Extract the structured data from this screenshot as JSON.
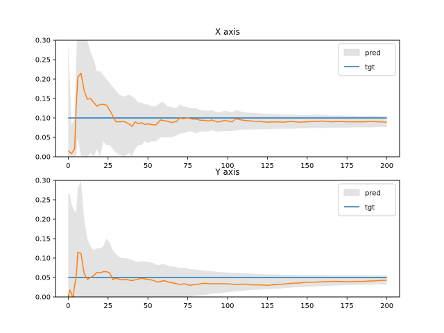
{
  "chart_data": [
    {
      "type": "line",
      "title": "X axis",
      "xlabel": "",
      "ylabel": "",
      "xlim": [
        -8,
        208
      ],
      "ylim": [
        0,
        0.3
      ],
      "xticks": [
        0,
        25,
        50,
        75,
        100,
        125,
        150,
        175,
        200
      ],
      "yticks": [
        0.0,
        0.05,
        0.1,
        0.15,
        0.2,
        0.25,
        0.3
      ],
      "ytick_labels": [
        "0.00",
        "0.05",
        "0.10",
        "0.15",
        "0.20",
        "0.25",
        "0.30"
      ],
      "grid": false,
      "legend": {
        "placement": "top-right",
        "entries": [
          "pred",
          "tgt"
        ]
      },
      "colors": {
        "pred_line": "#ff7f0e",
        "pred_band": "#e3e3e3",
        "tgt_line": "#1f77b4"
      },
      "series": [
        {
          "name": "pred",
          "kind": "line",
          "x": [
            0,
            2,
            4,
            5,
            6,
            8,
            10,
            12,
            14,
            16,
            18,
            20,
            22,
            24,
            26,
            28,
            30,
            32,
            35,
            38,
            40,
            42,
            44,
            46,
            48,
            50,
            52,
            55,
            58,
            60,
            62,
            65,
            68,
            70,
            72,
            75,
            78,
            80,
            83,
            85,
            88,
            90,
            93,
            95,
            98,
            100,
            103,
            105,
            110,
            115,
            120,
            125,
            130,
            135,
            140,
            145,
            150,
            155,
            160,
            165,
            170,
            175,
            180,
            185,
            190,
            195,
            200
          ],
          "values": [
            0.015,
            0.008,
            0.02,
            0.13,
            0.205,
            0.215,
            0.17,
            0.148,
            0.15,
            0.14,
            0.13,
            0.135,
            0.135,
            0.133,
            0.12,
            0.105,
            0.09,
            0.09,
            0.091,
            0.085,
            0.078,
            0.09,
            0.085,
            0.088,
            0.083,
            0.085,
            0.083,
            0.082,
            0.095,
            0.093,
            0.092,
            0.088,
            0.091,
            0.1,
            0.098,
            0.1,
            0.097,
            0.097,
            0.094,
            0.094,
            0.092,
            0.095,
            0.09,
            0.09,
            0.094,
            0.092,
            0.09,
            0.098,
            0.094,
            0.092,
            0.091,
            0.089,
            0.09,
            0.089,
            0.091,
            0.089,
            0.09,
            0.091,
            0.092,
            0.09,
            0.091,
            0.09,
            0.09,
            0.09,
            0.091,
            0.09,
            0.089
          ]
        },
        {
          "name": "pred-band",
          "kind": "band",
          "x": [
            0,
            2,
            4,
            5,
            6,
            8,
            10,
            12,
            14,
            16,
            18,
            20,
            22,
            24,
            26,
            28,
            30,
            32,
            35,
            38,
            40,
            42,
            44,
            46,
            48,
            50,
            52,
            55,
            58,
            60,
            62,
            65,
            68,
            70,
            72,
            75,
            78,
            80,
            83,
            85,
            88,
            90,
            93,
            95,
            98,
            100,
            103,
            105,
            110,
            115,
            120,
            125,
            130,
            135,
            140,
            145,
            150,
            155,
            160,
            165,
            170,
            175,
            180,
            185,
            190,
            195,
            200
          ],
          "lower": [
            -0.06,
            -0.07,
            -0.05,
            0.0,
            0.05,
            0.0,
            0.0,
            0.0,
            0.01,
            0.0,
            0.02,
            0.0,
            0.04,
            0.03,
            0.03,
            0.02,
            0.01,
            0.005,
            0.0,
            0.01,
            0.0,
            0.02,
            0.03,
            0.03,
            0.04,
            0.035,
            0.04,
            0.04,
            0.05,
            0.05,
            0.05,
            0.05,
            0.055,
            0.06,
            0.06,
            0.065,
            0.065,
            0.06,
            0.065,
            0.065,
            0.065,
            0.068,
            0.065,
            0.065,
            0.066,
            0.066,
            0.066,
            0.068,
            0.07,
            0.07,
            0.071,
            0.071,
            0.072,
            0.072,
            0.072,
            0.073,
            0.073,
            0.074,
            0.074,
            0.075,
            0.075,
            0.075,
            0.076,
            0.076,
            0.076,
            0.077,
            0.077
          ],
          "upper": [
            0.3,
            0.08,
            0.1,
            0.25,
            0.35,
            0.35,
            0.35,
            0.3,
            0.27,
            0.25,
            0.22,
            0.22,
            0.21,
            0.2,
            0.19,
            0.18,
            0.17,
            0.16,
            0.155,
            0.16,
            0.155,
            0.15,
            0.14,
            0.14,
            0.135,
            0.135,
            0.13,
            0.13,
            0.14,
            0.14,
            0.13,
            0.128,
            0.125,
            0.135,
            0.13,
            0.128,
            0.125,
            0.125,
            0.12,
            0.12,
            0.118,
            0.12,
            0.115,
            0.115,
            0.118,
            0.117,
            0.115,
            0.12,
            0.115,
            0.113,
            0.112,
            0.11,
            0.11,
            0.108,
            0.109,
            0.107,
            0.107,
            0.108,
            0.108,
            0.106,
            0.107,
            0.106,
            0.106,
            0.105,
            0.106,
            0.105,
            0.104
          ]
        },
        {
          "name": "tgt",
          "kind": "hline",
          "x": [
            0,
            200
          ],
          "values": [
            0.1,
            0.1
          ]
        }
      ]
    },
    {
      "type": "line",
      "title": "Y axis",
      "xlabel": "",
      "ylabel": "",
      "xlim": [
        -8,
        208
      ],
      "ylim": [
        0,
        0.3
      ],
      "xticks": [
        0,
        25,
        50,
        75,
        100,
        125,
        150,
        175,
        200
      ],
      "yticks": [
        0.0,
        0.05,
        0.1,
        0.15,
        0.2,
        0.25,
        0.3
      ],
      "ytick_labels": [
        "0.00",
        "0.05",
        "0.10",
        "0.15",
        "0.20",
        "0.25",
        "0.30"
      ],
      "grid": false,
      "legend": {
        "placement": "top-right",
        "entries": [
          "pred",
          "tgt"
        ]
      },
      "colors": {
        "pred_line": "#ff7f0e",
        "pred_band": "#e3e3e3",
        "tgt_line": "#1f77b4"
      },
      "series": [
        {
          "name": "pred",
          "kind": "line",
          "x": [
            0,
            1,
            2,
            3,
            4,
            5,
            6,
            8,
            10,
            12,
            14,
            16,
            18,
            20,
            22,
            24,
            26,
            28,
            30,
            33,
            36,
            40,
            43,
            46,
            50,
            53,
            56,
            60,
            63,
            66,
            70,
            73,
            76,
            80,
            85,
            90,
            95,
            100,
            105,
            110,
            115,
            120,
            125,
            130,
            135,
            140,
            145,
            150,
            155,
            160,
            165,
            170,
            175,
            180,
            185,
            190,
            195,
            200
          ],
          "values": [
            0.0,
            0.018,
            0.01,
            -0.005,
            0.03,
            0.05,
            0.115,
            0.112,
            0.06,
            0.045,
            0.05,
            0.055,
            0.063,
            0.062,
            0.065,
            0.065,
            0.062,
            0.045,
            0.048,
            0.044,
            0.045,
            0.042,
            0.045,
            0.048,
            0.045,
            0.043,
            0.038,
            0.042,
            0.038,
            0.036,
            0.032,
            0.034,
            0.03,
            0.032,
            0.035,
            0.034,
            0.034,
            0.034,
            0.032,
            0.033,
            0.031,
            0.031,
            0.03,
            0.032,
            0.033,
            0.035,
            0.036,
            0.038,
            0.038,
            0.039,
            0.04,
            0.04,
            0.039,
            0.04,
            0.04,
            0.041,
            0.042,
            0.043
          ]
        },
        {
          "name": "pred-band",
          "kind": "band",
          "x": [
            0,
            1,
            2,
            3,
            4,
            5,
            6,
            8,
            10,
            12,
            14,
            16,
            18,
            20,
            22,
            24,
            26,
            28,
            30,
            33,
            36,
            40,
            43,
            46,
            50,
            53,
            56,
            60,
            63,
            66,
            70,
            73,
            76,
            80,
            85,
            90,
            95,
            100,
            105,
            110,
            115,
            120,
            125,
            130,
            135,
            140,
            145,
            150,
            155,
            160,
            165,
            170,
            175,
            180,
            185,
            190,
            195,
            200
          ],
          "lower": [
            -0.05,
            -0.04,
            -0.05,
            -0.06,
            -0.04,
            -0.02,
            0.0,
            0.0,
            0.0,
            0.0,
            0.0,
            0.0,
            0.0,
            0.0,
            0.0,
            0.0,
            0.0,
            0.0,
            0.0,
            0.0,
            0.0,
            0.0,
            0.0,
            0.0,
            0.0,
            0.0,
            0.0,
            0.0,
            0.0,
            0.0,
            0.0,
            0.0,
            0.0,
            0.003,
            0.005,
            0.008,
            0.01,
            0.012,
            0.014,
            0.016,
            0.018,
            0.019,
            0.02,
            0.021,
            0.022,
            0.024,
            0.025,
            0.026,
            0.027,
            0.028,
            0.029,
            0.03,
            0.03,
            0.031,
            0.031,
            0.032,
            0.032,
            0.032
          ],
          "upper": [
            0.265,
            0.265,
            0.24,
            0.23,
            0.22,
            0.22,
            0.28,
            0.3,
            0.2,
            0.15,
            0.13,
            0.12,
            0.125,
            0.125,
            0.13,
            0.15,
            0.14,
            0.12,
            0.11,
            0.1,
            0.1,
            0.095,
            0.09,
            0.092,
            0.09,
            0.088,
            0.082,
            0.085,
            0.08,
            0.078,
            0.075,
            0.075,
            0.072,
            0.07,
            0.068,
            0.066,
            0.064,
            0.063,
            0.062,
            0.061,
            0.06,
            0.059,
            0.058,
            0.058,
            0.057,
            0.057,
            0.056,
            0.056,
            0.056,
            0.056,
            0.055,
            0.055,
            0.055,
            0.055,
            0.055,
            0.055,
            0.055,
            0.055
          ]
        },
        {
          "name": "tgt",
          "kind": "hline",
          "x": [
            0,
            200
          ],
          "values": [
            0.05,
            0.05
          ]
        }
      ]
    }
  ]
}
